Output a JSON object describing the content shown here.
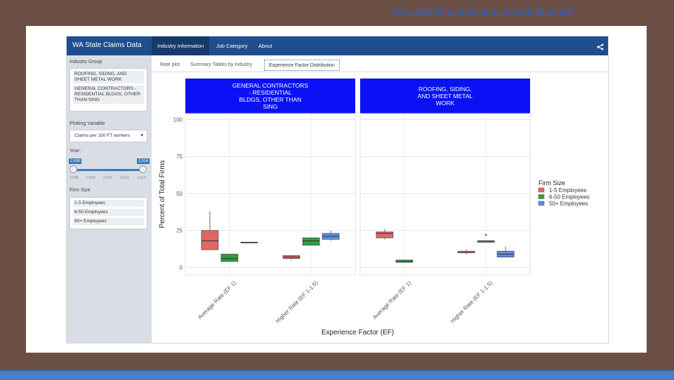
{
  "link": "https://bwelena.shinyapps.io/flexdash_injury/",
  "app": {
    "brand": "WA State Claims Data",
    "nav_tabs": [
      "Industry Information",
      "Job Category",
      "About"
    ],
    "active_nav": 0
  },
  "sidebar": {
    "industry_label": "Industry Group",
    "industry_items": [
      "ROOFING, SIDING, AND SHEET METAL WORK",
      "GENERAL CONTRACTORS - RESIDENTIAL BLDGS, OTHER THAN SING"
    ],
    "plotting_label": "Plotting Variable",
    "plotting_value": "Claims per 100 FT workers",
    "year_label": "Year:",
    "year_min": "2,008",
    "year_max": "2,014",
    "year_ticks": [
      "2,008",
      "2,009",
      "2,010",
      "2,012",
      "2,014"
    ],
    "firm_label": "Firm Size",
    "firm_items": [
      "1-5 Employees",
      "6-50 Employees",
      "50+ Employees"
    ]
  },
  "subtabs": [
    "Rate plot",
    "Summary Tables by Industry",
    "Experience Factor Distribution"
  ],
  "chart_data": {
    "type": "boxplot",
    "ylabel": "Percent of Total Firms",
    "xlabel": "Experience Factor (EF)",
    "ylim": [
      0,
      100
    ],
    "yticks": [
      0,
      25,
      50,
      75,
      100
    ],
    "categories": [
      "Average Rate (EF 1)",
      "Higher Rate (EF 1-1.5)"
    ],
    "legend_title": "Firm Size",
    "series": [
      {
        "name": "1-5 Employees",
        "color": "#e06666"
      },
      {
        "name": "6-50 Employees",
        "color": "#2e9e44"
      },
      {
        "name": "50+ Employees",
        "color": "#5b8fe0"
      }
    ],
    "panels": [
      {
        "title": "GENERAL CONTRACTORS - RESIDENTIAL BLDGS, OTHER THAN SING",
        "title_lines": [
          "GENERAL CONTRACTORS",
          "- RESIDENTIAL",
          "BLDGS, OTHER THAN",
          "SING"
        ],
        "boxes": [
          {
            "category": 0,
            "series": 0,
            "min": 12,
            "q1": 12,
            "median": 18,
            "q3": 25,
            "max": 38
          },
          {
            "category": 0,
            "series": 1,
            "min": 4,
            "q1": 4,
            "median": 6,
            "q3": 9,
            "max": 9
          },
          {
            "category": 0,
            "series": 2,
            "min": 17,
            "q1": 17,
            "median": 17,
            "q3": 17,
            "max": 17
          },
          {
            "category": 1,
            "series": 0,
            "min": 5,
            "q1": 6,
            "median": 7,
            "q3": 8,
            "max": 8
          },
          {
            "category": 1,
            "series": 1,
            "min": 15,
            "q1": 15,
            "median": 18,
            "q3": 20,
            "max": 20
          },
          {
            "category": 1,
            "series": 2,
            "min": 18,
            "q1": 19,
            "median": 21,
            "q3": 23,
            "max": 25
          }
        ]
      },
      {
        "title": "ROOFING, SIDING, AND SHEET METAL WORK",
        "title_lines": [
          "ROOFING, SIDING,",
          "AND SHEET METAL",
          "WORK"
        ],
        "boxes": [
          {
            "category": 0,
            "series": 0,
            "min": 19,
            "q1": 20,
            "median": 23,
            "q3": 24,
            "max": 26
          },
          {
            "category": 0,
            "series": 1,
            "min": 3.5,
            "q1": 3.5,
            "median": 4,
            "q3": 5,
            "max": 5
          },
          {
            "category": 1,
            "series": 0,
            "min": 9,
            "q1": 10,
            "median": 10,
            "q3": 11,
            "max": 12
          },
          {
            "category": 1,
            "series": 1,
            "min": 17,
            "q1": 17,
            "median": 18,
            "q3": 18,
            "max": 18,
            "outliers": [
              22
            ]
          },
          {
            "category": 1,
            "series": 2,
            "min": 7,
            "q1": 7,
            "median": 9,
            "q3": 11,
            "max": 14
          }
        ]
      }
    ]
  }
}
